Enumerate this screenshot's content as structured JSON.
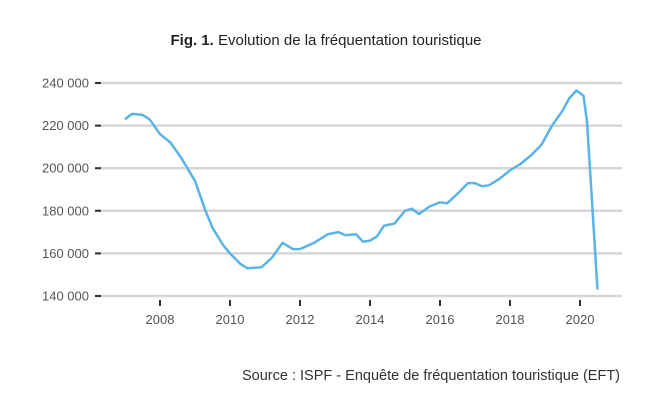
{
  "title": {
    "prefix": "Fig. 1.",
    "text": "Evolution de la fréquentation touristique"
  },
  "source": "Source : ISPF - Enquête de fréquentation touristique (EFT)",
  "chart_data": {
    "type": "line",
    "title": "Evolution de la fréquentation touristique",
    "xlabel": "",
    "ylabel": "",
    "xlim": [
      2006.3,
      2021.2
    ],
    "ylim": [
      140000,
      240000
    ],
    "grid": true,
    "color": "#5ab4e5",
    "xticks": [
      2008,
      2010,
      2012,
      2014,
      2016,
      2018,
      2020
    ],
    "xtick_labels": [
      "2008",
      "2010",
      "2012",
      "2014",
      "2016",
      "2018",
      "2020"
    ],
    "yticks": [
      140000,
      160000,
      180000,
      200000,
      220000,
      240000
    ],
    "ytick_labels": [
      "140 000",
      "160 000",
      "180 000",
      "200 000",
      "220 000",
      "240 000"
    ],
    "series": [
      {
        "x": [
          2007.0,
          2007.2,
          2007.5,
          2007.7,
          2008.0,
          2008.3,
          2008.6,
          2009.0,
          2009.3,
          2009.5,
          2009.8,
          2010.0,
          2010.3,
          2010.5,
          2010.9,
          2011.2,
          2011.5,
          2011.8,
          2012.0,
          2012.4,
          2012.8,
          2013.1,
          2013.3,
          2013.6,
          2013.8,
          2014.0,
          2014.2,
          2014.4,
          2014.7,
          2015.0,
          2015.2,
          2015.4,
          2015.7,
          2016.0,
          2016.2,
          2016.5,
          2016.8,
          2017.0,
          2017.2,
          2017.4,
          2017.7,
          2018.0,
          2018.3,
          2018.6,
          2018.9,
          2019.2,
          2019.5,
          2019.7,
          2019.9,
          2020.1,
          2020.2,
          2020.5
        ],
        "y": [
          223000,
          225500,
          225000,
          223000,
          216000,
          212000,
          205000,
          194000,
          180000,
          172000,
          164000,
          160000,
          155000,
          153000,
          153500,
          158000,
          165000,
          162000,
          162000,
          165000,
          169000,
          170000,
          168500,
          169000,
          165500,
          166000,
          168000,
          173000,
          174000,
          180000,
          181000,
          178500,
          182000,
          184000,
          183500,
          188000,
          193000,
          193000,
          191500,
          192000,
          195000,
          199000,
          202000,
          206000,
          211000,
          220000,
          227000,
          233000,
          236500,
          234000,
          222000,
          143000
        ]
      }
    ]
  }
}
